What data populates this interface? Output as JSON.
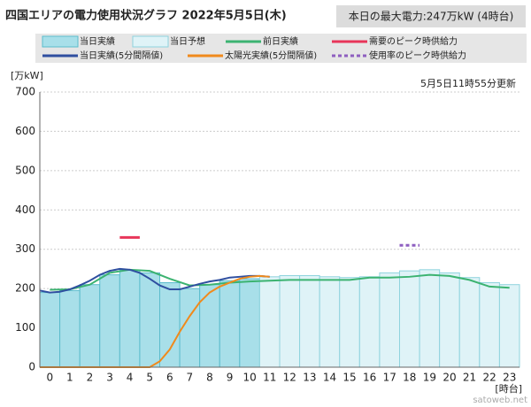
{
  "chart_data": {
    "type": "combo",
    "title": "四国エリアの電力使用状況グラフ 2022年5月5日(木)",
    "max_note": "本日の最大電力:247万kW (4時台)",
    "update_note": "5月5日11時55分更新",
    "y_label": "[万kW]",
    "x_label": "[時台]",
    "watermark": "satoweb.net",
    "categories": [
      "0",
      "1",
      "2",
      "3",
      "4",
      "5",
      "6",
      "7",
      "8",
      "9",
      "10",
      "11",
      "12",
      "13",
      "14",
      "15",
      "16",
      "17",
      "18",
      "19",
      "20",
      "21",
      "22",
      "23"
    ],
    "ylim": [
      0,
      700
    ],
    "yticks": [
      0,
      100,
      200,
      300,
      400,
      500,
      600,
      700
    ],
    "grid": true,
    "series": [
      {
        "name": "当日実績",
        "style": "bar",
        "color": "#a8dfe9",
        "stroke": "#5bbccc",
        "values": [
          190,
          195,
          210,
          235,
          247,
          240,
          215,
          200,
          210,
          220,
          225,
          null,
          null,
          null,
          null,
          null,
          null,
          null,
          null,
          null,
          null,
          null,
          null,
          null
        ]
      },
      {
        "name": "当日予想",
        "style": "bar",
        "color": "#dff3f7",
        "stroke": "#8fd3de",
        "values": [
          null,
          null,
          null,
          null,
          null,
          null,
          null,
          null,
          null,
          null,
          null,
          230,
          233,
          233,
          230,
          228,
          230,
          240,
          245,
          248,
          240,
          228,
          215,
          210
        ]
      },
      {
        "name": "前日実績",
        "style": "line",
        "color": "#3cb371",
        "values": [
          197,
          198,
          210,
          240,
          248,
          245,
          225,
          208,
          210,
          215,
          218,
          220,
          222,
          222,
          222,
          222,
          228,
          228,
          230,
          235,
          232,
          222,
          205,
          202
        ]
      },
      {
        "name": "需要のピーク時供給力",
        "style": "segment",
        "color": "#e8365a",
        "values": [
          null,
          null,
          null,
          null,
          330,
          null,
          null,
          null,
          null,
          null,
          null,
          null,
          null,
          null,
          null,
          null,
          null,
          null,
          null,
          null,
          null,
          null,
          null,
          null
        ]
      },
      {
        "name": "当日実績(5分間隔値)",
        "style": "xline",
        "color": "#2f4fa0",
        "x": [
          0,
          0.5,
          1,
          1.5,
          2,
          2.5,
          3,
          3.5,
          4,
          4.5,
          5,
          5.5,
          6,
          6.5,
          7,
          7.5,
          8,
          8.5,
          9,
          9.5,
          10,
          10.5,
          11,
          11.5
        ],
        "values": [
          195,
          190,
          192,
          198,
          208,
          220,
          235,
          245,
          250,
          248,
          240,
          225,
          208,
          198,
          198,
          205,
          212,
          218,
          222,
          228,
          230,
          232,
          232,
          230
        ]
      },
      {
        "name": "太陽光実績(5分間隔値)",
        "style": "xline",
        "color": "#f08a1c",
        "x": [
          0,
          0.5,
          1,
          1.5,
          2,
          2.5,
          3,
          3.5,
          4,
          4.5,
          5,
          5.5,
          6,
          6.5,
          7,
          7.5,
          8,
          8.5,
          9,
          9.5,
          10,
          10.5,
          11,
          11.5
        ],
        "values": [
          0,
          0,
          0,
          0,
          0,
          0,
          0,
          0,
          0,
          0,
          0,
          0,
          15,
          45,
          90,
          130,
          165,
          190,
          205,
          215,
          225,
          230,
          232,
          230
        ]
      },
      {
        "name": "使用率のピーク時供給力",
        "style": "segment",
        "dashed": true,
        "color": "#8e5fc0",
        "values": [
          null,
          null,
          null,
          null,
          null,
          null,
          null,
          null,
          null,
          null,
          null,
          null,
          null,
          null,
          null,
          null,
          null,
          null,
          310,
          null,
          null,
          null,
          null,
          null
        ]
      }
    ]
  }
}
